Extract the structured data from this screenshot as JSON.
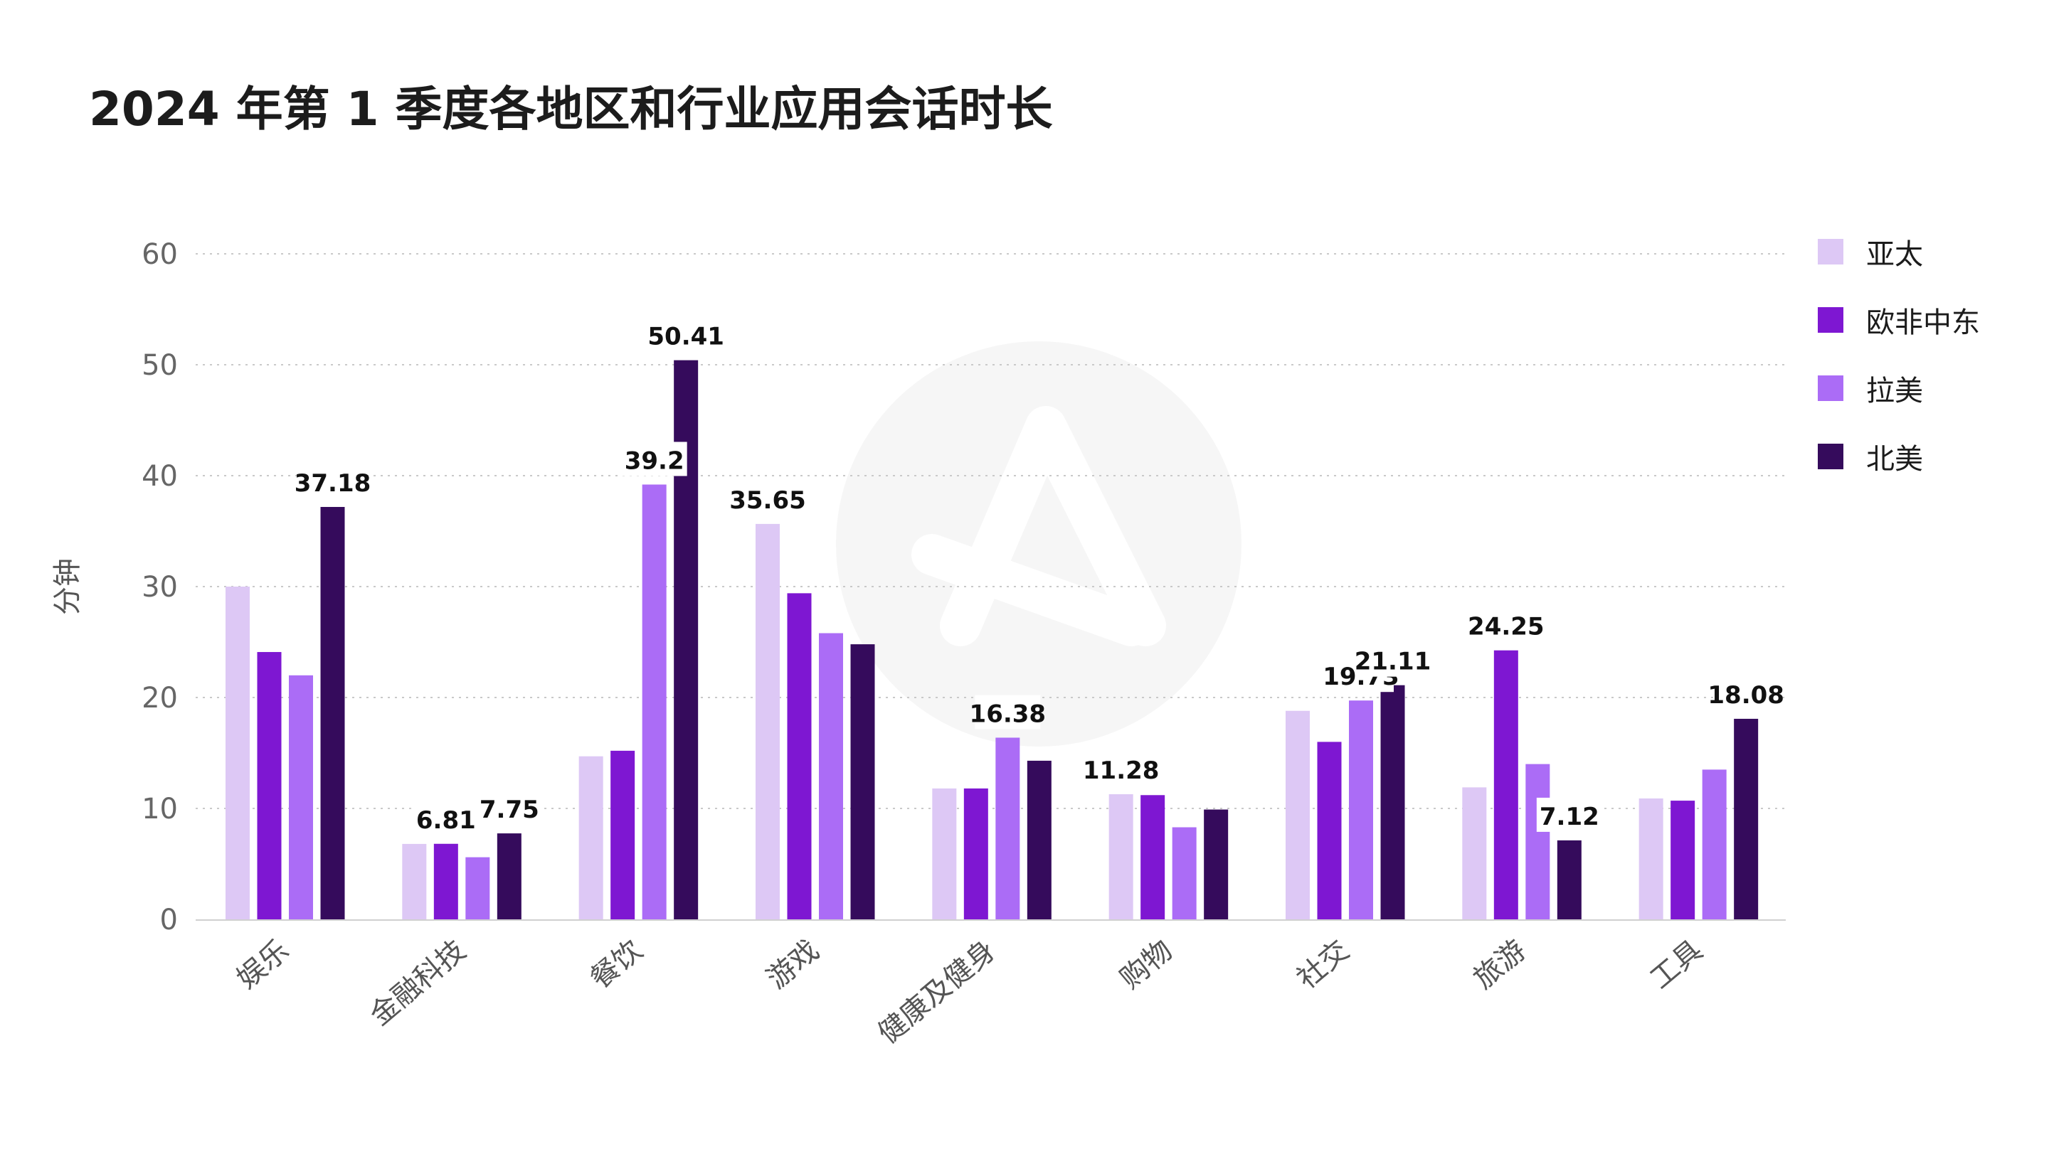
{
  "chart_data": {
    "type": "bar",
    "title": "2024 年第 1 季度各地区和行业应用会话时长",
    "ylabel": "分钟",
    "ylim": [
      0,
      60
    ],
    "yticks": [
      0,
      10,
      20,
      30,
      40,
      50,
      60
    ],
    "grid": true,
    "legend_position": "right",
    "categories": [
      "娱乐",
      "金融科技",
      "餐饮",
      "游戏",
      "健康及健身",
      "购物",
      "社交",
      "旅游",
      "工具"
    ],
    "series": [
      {
        "name": "亚太",
        "color": "#ddc8f5",
        "values": [
          30.0,
          6.8,
          14.7,
          35.65,
          11.8,
          11.28,
          18.8,
          11.9,
          10.9
        ]
      },
      {
        "name": "欧非中东",
        "color": "#7e17d2",
        "values": [
          24.1,
          6.81,
          15.2,
          29.4,
          11.8,
          11.2,
          16.0,
          24.25,
          10.7
        ]
      },
      {
        "name": "拉美",
        "color": "#ab6cf6",
        "values": [
          22.0,
          5.6,
          39.2,
          25.8,
          16.38,
          8.3,
          19.73,
          14.0,
          13.5
        ]
      },
      {
        "name": "北美",
        "color": "#350b5c",
        "values": [
          37.18,
          7.75,
          50.41,
          24.8,
          14.3,
          9.9,
          21.11,
          7.12,
          18.08
        ]
      }
    ],
    "data_labels": [
      {
        "category": 0,
        "series": 3,
        "text": "37.18"
      },
      {
        "category": 1,
        "series": 1,
        "text": "6.81"
      },
      {
        "category": 1,
        "series": 3,
        "text": "7.75"
      },
      {
        "category": 2,
        "series": 2,
        "text": "39.2"
      },
      {
        "category": 2,
        "series": 3,
        "text": "50.41"
      },
      {
        "category": 3,
        "series": 0,
        "text": "35.65"
      },
      {
        "category": 4,
        "series": 2,
        "text": "16.38"
      },
      {
        "category": 5,
        "series": 0,
        "text": "11.28"
      },
      {
        "category": 6,
        "series": 2,
        "text": "19.73"
      },
      {
        "category": 6,
        "series": 3,
        "text": "21.11"
      },
      {
        "category": 7,
        "series": 1,
        "text": "24.25"
      },
      {
        "category": 7,
        "series": 3,
        "text": "7.12"
      },
      {
        "category": 8,
        "series": 3,
        "text": "18.08"
      }
    ]
  }
}
